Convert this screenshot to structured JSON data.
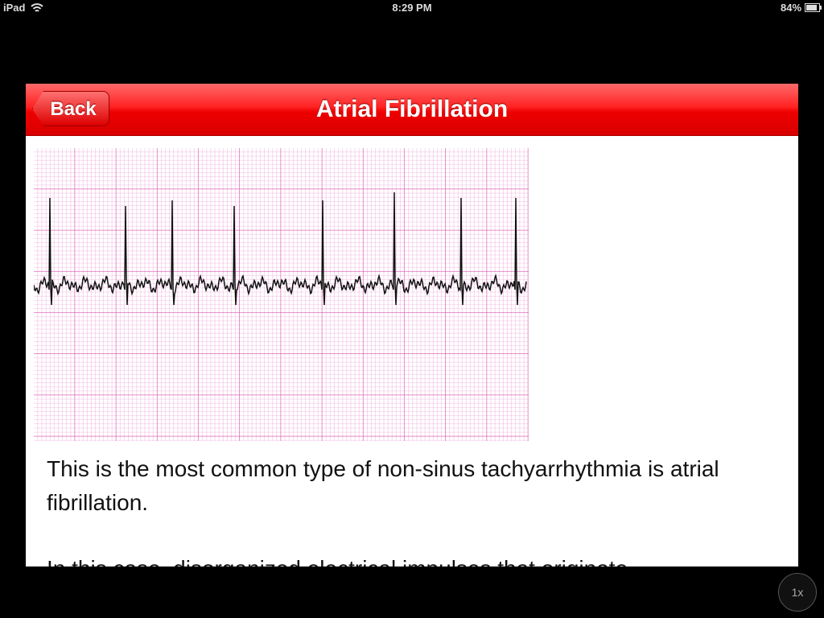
{
  "status_bar": {
    "device": "iPad",
    "time": "8:29 PM",
    "battery": "84%"
  },
  "nav_bar": {
    "back": "Back",
    "title": "Atrial Fibrillation"
  },
  "content": {
    "paragraphs": [
      "This is the most common type of non-sinus tachyarrhythmia is atrial fibrillation.",
      "In this case, disorganized electrical impulses that originate"
    ]
  },
  "zoom_button": "1x"
}
